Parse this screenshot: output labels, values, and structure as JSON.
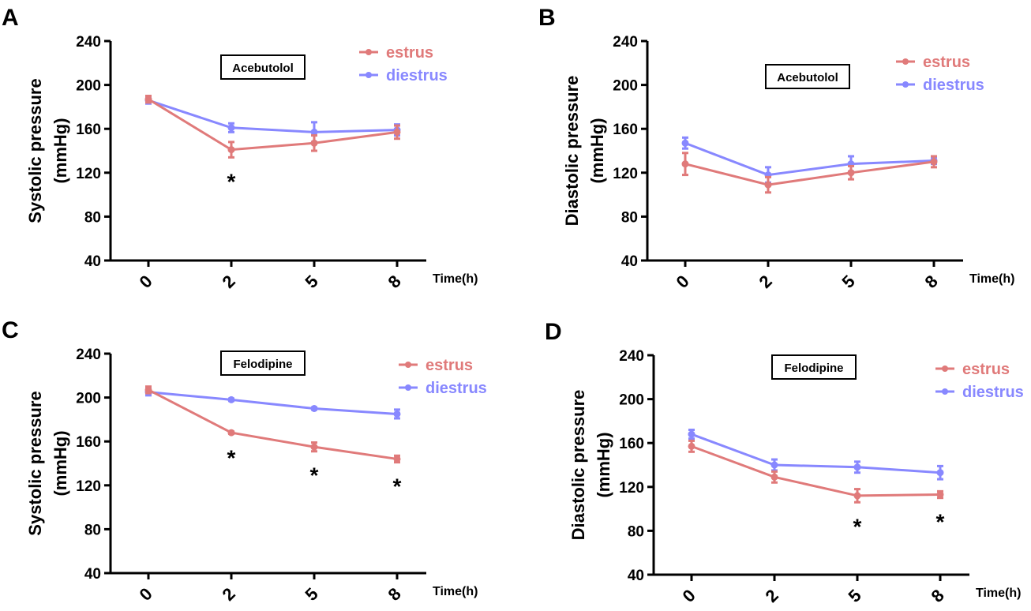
{
  "colors": {
    "estrus": "#e07a7a",
    "diestrus": "#8888ff",
    "axis": "#000000"
  },
  "chart_data": [
    {
      "panel": "A",
      "type": "line",
      "title": "Acebutolol",
      "xlabel": "Time(h)",
      "ylabel": [
        "Systolic pressure",
        "(mmHg)"
      ],
      "categories": [
        "0",
        "2",
        "5",
        "8"
      ],
      "ylim": [
        40,
        240
      ],
      "yticks": [
        "40",
        "80",
        "120",
        "160",
        "200",
        "240"
      ],
      "legend": "top-right",
      "grid": false,
      "series": [
        {
          "name": "estrus",
          "values": [
            187,
            141,
            147,
            157
          ],
          "errors": [
            3,
            7,
            7,
            6
          ]
        },
        {
          "name": "diestrus",
          "values": [
            186,
            161,
            157,
            159
          ],
          "errors": [
            3,
            4,
            9,
            5
          ]
        }
      ],
      "annotations": [
        {
          "x": "2",
          "text": "*"
        }
      ]
    },
    {
      "panel": "B",
      "type": "line",
      "title": "Acebutolol",
      "xlabel": "Time(h)",
      "ylabel": [
        "Diastolic pressure",
        "(mmHg)"
      ],
      "categories": [
        "0",
        "2",
        "5",
        "8"
      ],
      "ylim": [
        40,
        240
      ],
      "yticks": [
        "40",
        "80",
        "120",
        "160",
        "200",
        "240"
      ],
      "legend": "top-right",
      "grid": false,
      "series": [
        {
          "name": "estrus",
          "values": [
            128,
            109,
            120,
            130
          ],
          "errors": [
            10,
            7,
            6,
            5
          ]
        },
        {
          "name": "diestrus",
          "values": [
            147,
            118,
            128,
            131
          ],
          "errors": [
            5,
            7,
            7,
            3
          ]
        }
      ],
      "annotations": []
    },
    {
      "panel": "C",
      "type": "line",
      "title": "Felodipine",
      "xlabel": "Time(h)",
      "ylabel": [
        "Systolic pressure",
        "(mmHg)"
      ],
      "categories": [
        "0",
        "2",
        "5",
        "8"
      ],
      "ylim": [
        40,
        240
      ],
      "yticks": [
        "40",
        "80",
        "120",
        "160",
        "200",
        "240"
      ],
      "legend": "top-right",
      "grid": false,
      "series": [
        {
          "name": "estrus",
          "values": [
            207,
            168,
            155,
            144
          ],
          "errors": [
            3,
            1,
            4,
            3
          ]
        },
        {
          "name": "diestrus",
          "values": [
            205,
            198,
            190,
            185
          ],
          "errors": [
            3,
            1,
            1,
            4
          ]
        }
      ],
      "annotations": [
        {
          "x": "2",
          "text": "*"
        },
        {
          "x": "5",
          "text": "*"
        },
        {
          "x": "8",
          "text": "*"
        }
      ]
    },
    {
      "panel": "D",
      "type": "line",
      "title": "Felodipine",
      "xlabel": "Time(h)",
      "ylabel": [
        "Diastolic pressure",
        "(mmHg)"
      ],
      "categories": [
        "0",
        "2",
        "5",
        "8"
      ],
      "ylim": [
        40,
        240
      ],
      "yticks": [
        "40",
        "80",
        "120",
        "160",
        "200",
        "240"
      ],
      "legend": "top-right",
      "grid": false,
      "series": [
        {
          "name": "estrus",
          "values": [
            157,
            129,
            112,
            113
          ],
          "errors": [
            5,
            5,
            6,
            3
          ]
        },
        {
          "name": "diestrus",
          "values": [
            168,
            140,
            138,
            133
          ],
          "errors": [
            4,
            5,
            5,
            6
          ]
        }
      ],
      "annotations": [
        {
          "x": "5",
          "text": "*"
        },
        {
          "x": "8",
          "text": "*"
        }
      ]
    }
  ]
}
